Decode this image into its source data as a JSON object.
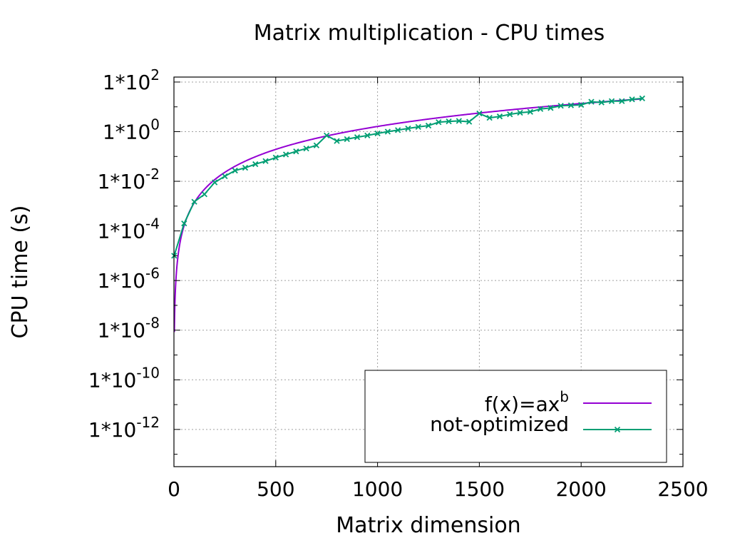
{
  "chart_data": {
    "type": "line",
    "title": "Matrix multiplication - CPU times",
    "xlabel": "Matrix dimension",
    "ylabel": "CPU time (s)",
    "xlim": [
      0,
      2500
    ],
    "ylim_log10": [
      -13.5,
      2.2
    ],
    "y_scale": "log",
    "grid": true,
    "legend_position": "bottom-right",
    "x_ticks": [
      "0",
      "500",
      "1000",
      "1500",
      "2000",
      "2500"
    ],
    "x_tick_values": [
      0,
      500,
      1000,
      1500,
      2000,
      2500
    ],
    "y_ticks": [
      {
        "base": "1*10",
        "exp": "2",
        "value": 100
      },
      {
        "base": "1*10",
        "exp": "0",
        "value": 1
      },
      {
        "base": "1*10",
        "exp": "-2",
        "value": 0.01
      },
      {
        "base": "1*10",
        "exp": "-4",
        "value": 0.0001
      },
      {
        "base": "1*10",
        "exp": "-6",
        "value": 1e-06
      },
      {
        "base": "1*10",
        "exp": "-8",
        "value": 1e-08
      },
      {
        "base": "1*10",
        "exp": "-10",
        "value": 1e-10
      },
      {
        "base": "1*10",
        "exp": "-12",
        "value": 1e-12
      }
    ],
    "series": [
      {
        "name": "f(x)=ax",
        "name_superscript": "b",
        "color": "#9400d3",
        "style": "line",
        "x_range": [
          2,
          2300
        ],
        "a": 1e-09,
        "b": 3.07
      },
      {
        "name": "not-optimized",
        "color": "#009e73",
        "style": "linespoints",
        "marker": "x",
        "x": [
          1,
          50,
          100,
          150,
          200,
          250,
          300,
          350,
          400,
          450,
          500,
          550,
          600,
          650,
          700,
          750,
          800,
          850,
          900,
          950,
          1000,
          1050,
          1100,
          1150,
          1200,
          1250,
          1300,
          1350,
          1400,
          1450,
          1500,
          1550,
          1600,
          1650,
          1700,
          1750,
          1800,
          1850,
          1900,
          1950,
          2000,
          2050,
          2100,
          2150,
          2200,
          2250,
          2300
        ],
        "y": [
          1e-05,
          0.0002,
          0.0015,
          0.003,
          0.009,
          0.016,
          0.027,
          0.035,
          0.049,
          0.065,
          0.09,
          0.12,
          0.16,
          0.21,
          0.28,
          0.7,
          0.42,
          0.5,
          0.6,
          0.7,
          0.85,
          1.0,
          1.15,
          1.35,
          1.55,
          1.75,
          2.4,
          2.6,
          2.7,
          2.5,
          5.4,
          3.6,
          4.1,
          5.0,
          5.8,
          6.3,
          8.2,
          9.0,
          11.0,
          11.5,
          12.0,
          16.0,
          15.0,
          17.0,
          17.0,
          20.0,
          22.0
        ]
      }
    ]
  }
}
